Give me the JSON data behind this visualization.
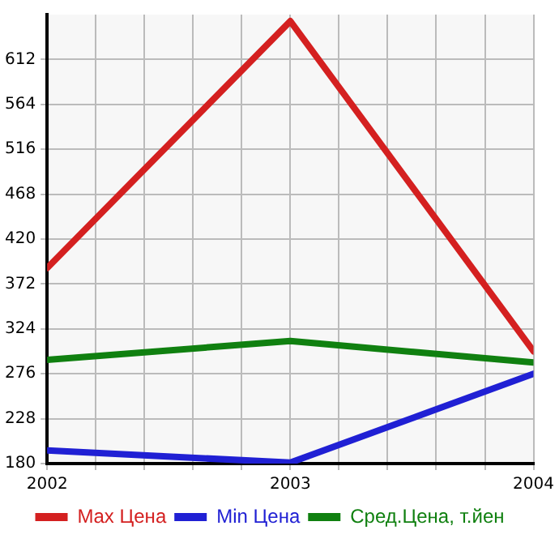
{
  "chart_data": {
    "type": "line",
    "x": [
      2002,
      2003,
      2004
    ],
    "series": [
      {
        "name": "Max Цена",
        "color": "#d42020",
        "values": [
          389,
          653,
          300
        ]
      },
      {
        "name": "Min Цена",
        "color": "#2020d4",
        "values": [
          194,
          181,
          276
        ]
      },
      {
        "name": "Сред.Цена, т.йен",
        "color": "#108010",
        "values": [
          291,
          311,
          288
        ]
      }
    ],
    "xlim": [
      2002,
      2004
    ],
    "xticks": [
      2002,
      {
        "value": 2002.2,
        "label": null
      },
      {
        "value": 2002.4,
        "label": null
      },
      {
        "value": 2002.6,
        "label": null
      },
      {
        "value": 2002.8,
        "label": null
      },
      2003,
      {
        "value": 2003.2,
        "label": null
      },
      {
        "value": 2003.4,
        "label": null
      },
      {
        "value": 2003.6,
        "label": null
      },
      {
        "value": 2003.8,
        "label": null
      },
      2004
    ],
    "ylim": [
      180,
      660
    ],
    "yticks": [
      180,
      228,
      276,
      324,
      372,
      420,
      468,
      516,
      564,
      612
    ],
    "grid": true,
    "legend": "bottom",
    "line_style": "solid"
  }
}
